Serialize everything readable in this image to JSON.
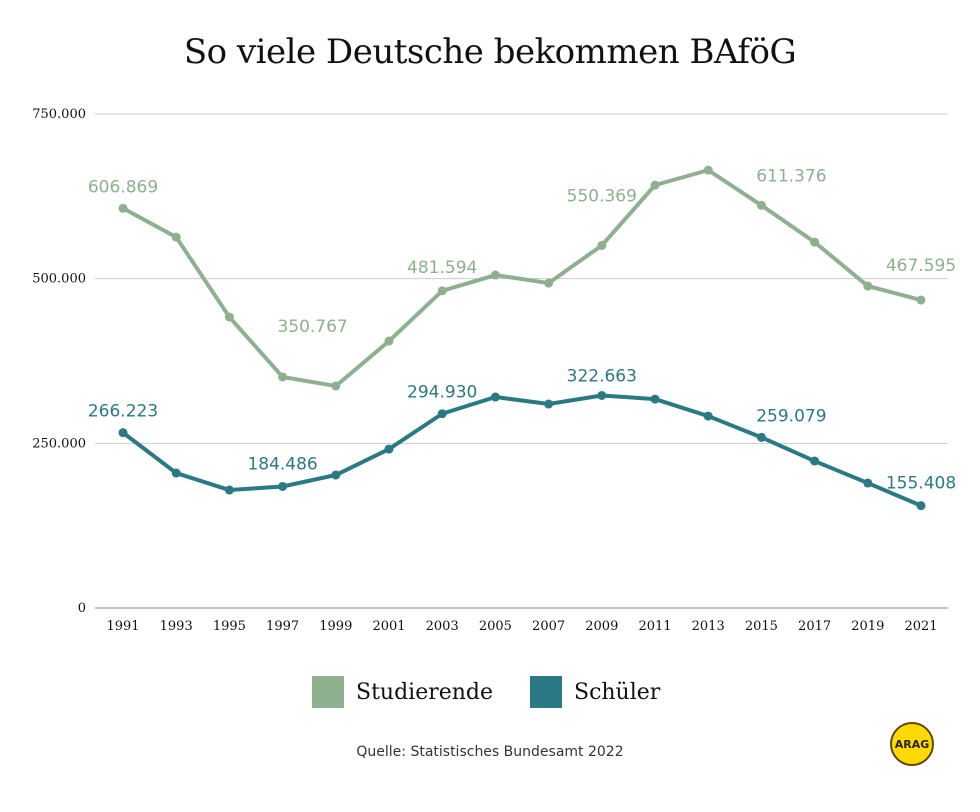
{
  "chart_data": {
    "type": "line",
    "title": "So viele Deutsche bekommen BAföG",
    "xlabel": "",
    "ylabel": "",
    "categories": [
      "1991",
      "1993",
      "1995",
      "1997",
      "1999",
      "2001",
      "2003",
      "2005",
      "2007",
      "2009",
      "2011",
      "2013",
      "2015",
      "2017",
      "2019",
      "2021"
    ],
    "ylim": [
      0,
      750000
    ],
    "yticks": [
      0,
      250000,
      500000,
      750000
    ],
    "ytick_labels": [
      "0",
      "250.000",
      "500.000",
      "750.000"
    ],
    "grid": true,
    "legend_position": "bottom",
    "series": [
      {
        "name": "Studierende",
        "color": "#8fb08f",
        "values": [
          606869,
          563000,
          441700,
          350767,
          337000,
          405300,
          481594,
          505500,
          493300,
          550369,
          642000,
          664800,
          611376,
          555500,
          488800,
          467595
        ],
        "data_labels": {
          "0": "606.869",
          "3": "350.767",
          "6": "481.594",
          "9": "550.369",
          "12": "611.376",
          "15": "467.595"
        }
      },
      {
        "name": "Schüler",
        "color": "#2a7a85",
        "values": [
          266223,
          204900,
          179100,
          184486,
          201900,
          241300,
          294930,
          320300,
          309700,
          322663,
          317200,
          291400,
          259079,
          223100,
          189700,
          155408
        ],
        "data_labels": {
          "0": "266.223",
          "3": "184.486",
          "6": "294.930",
          "9": "322.663",
          "12": "259.079",
          "15": "155.408"
        }
      }
    ]
  },
  "source": "Quelle:  Statistisches Bundesamt 2022",
  "logo": {
    "text": "ARAG",
    "color": "#ffd900"
  }
}
